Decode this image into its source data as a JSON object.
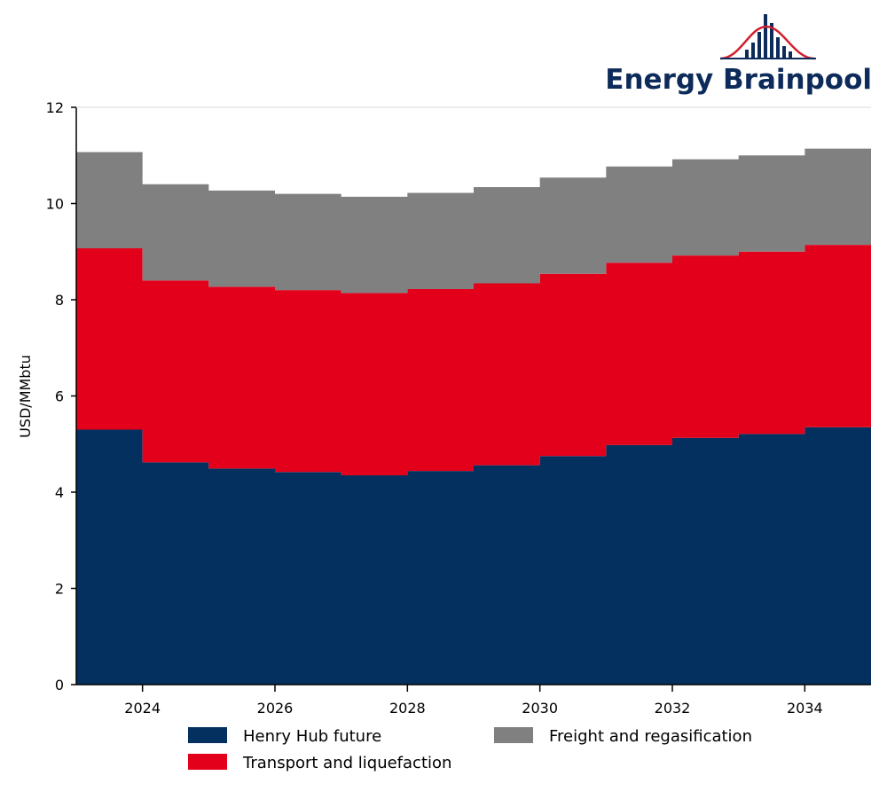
{
  "brand": {
    "name": "Energy Brainpool",
    "color": "#0d2b5a",
    "accent": "#d0202e"
  },
  "chart_data": {
    "type": "area",
    "stacked": true,
    "step": true,
    "title": "",
    "xlabel": "",
    "ylabel": "USD/MMbtu",
    "xlim": [
      2023,
      2035
    ],
    "ylim": [
      0,
      12
    ],
    "y_ticks": [
      0,
      2,
      4,
      6,
      8,
      10,
      12
    ],
    "x_ticks": [
      2024,
      2026,
      2028,
      2030,
      2032,
      2034
    ],
    "grid": false,
    "legend_position": "bottom",
    "x": [
      2023,
      2024,
      2025,
      2026,
      2027,
      2028,
      2029,
      2030,
      2031,
      2032,
      2033,
      2034
    ],
    "series": [
      {
        "name": "Henry Hub future",
        "color": "#03305e",
        "values": [
          5.3,
          4.62,
          4.49,
          4.42,
          4.35,
          4.44,
          4.56,
          4.75,
          4.98,
          5.13,
          5.21,
          5.35
        ]
      },
      {
        "name": "Transport and liquefaction",
        "color": "#e3001b",
        "values": [
          3.77,
          3.78,
          3.78,
          3.78,
          3.79,
          3.78,
          3.78,
          3.79,
          3.79,
          3.79,
          3.79,
          3.79
        ]
      },
      {
        "name": "Freight and regasification",
        "color": "#808080",
        "values": [
          2.0,
          2.0,
          2.0,
          2.0,
          2.0,
          2.0,
          2.0,
          2.0,
          2.0,
          2.0,
          2.0,
          2.0
        ]
      }
    ]
  }
}
